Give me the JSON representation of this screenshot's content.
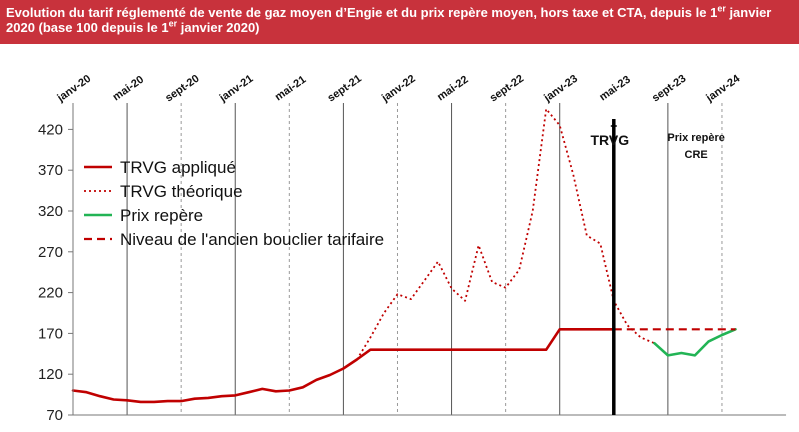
{
  "header": {
    "title_part1": "Evolution du tarif réglementé de vente de gaz moyen d’Engie et du prix repère moyen, hors taxe et CTA, depuis le 1",
    "title_sup1": "er",
    "title_part2": " janvier 2020 (base 100 depuis le 1",
    "title_sup2": "er",
    "title_part3": " janvier 2020)"
  },
  "chart_data": {
    "type": "line",
    "x_labels": [
      "janv-20",
      "mai-20",
      "sept-20",
      "janv-21",
      "mai-21",
      "sept-21",
      "janv-22",
      "mai-22",
      "sept-22",
      "janv-23",
      "mai-23",
      "sept-23",
      "janv-24"
    ],
    "x_start": "2020-01",
    "ylim": [
      70,
      445
    ],
    "yticks": [
      70,
      120,
      170,
      220,
      270,
      320,
      370,
      420
    ],
    "colors": {
      "trvg_applique": "#c00000",
      "trvg_theorique": "#c00000",
      "prix_repere": "#22b455",
      "bouclier": "#c00000"
    },
    "series": [
      {
        "name": "TRVG appliqué",
        "style": "solid",
        "points": [
          [
            0,
            100
          ],
          [
            1,
            98
          ],
          [
            2,
            93
          ],
          [
            3,
            89
          ],
          [
            4,
            88
          ],
          [
            5,
            86
          ],
          [
            6,
            86
          ],
          [
            7,
            87
          ],
          [
            8,
            87
          ],
          [
            9,
            90
          ],
          [
            10,
            91
          ],
          [
            11,
            93
          ],
          [
            12,
            94
          ],
          [
            13,
            98
          ],
          [
            14,
            102
          ],
          [
            15,
            99
          ],
          [
            16,
            100
          ],
          [
            17,
            104
          ],
          [
            18,
            113
          ],
          [
            19,
            119
          ],
          [
            20,
            127
          ],
          [
            21,
            138
          ],
          [
            22,
            150
          ],
          [
            23,
            150
          ],
          [
            24,
            150
          ],
          [
            25,
            150
          ],
          [
            26,
            150
          ],
          [
            27,
            150
          ],
          [
            28,
            150
          ],
          [
            29,
            150
          ],
          [
            30,
            150
          ],
          [
            31,
            150
          ],
          [
            32,
            150
          ],
          [
            33,
            150
          ],
          [
            34,
            150
          ],
          [
            35,
            150
          ],
          [
            36,
            175
          ],
          [
            37,
            175
          ],
          [
            38,
            175
          ],
          [
            39,
            175
          ],
          [
            40,
            175
          ]
        ]
      },
      {
        "name": "TRVG théorique",
        "style": "dotted",
        "points": [
          [
            21,
            138
          ],
          [
            22,
            165
          ],
          [
            23,
            195
          ],
          [
            24,
            218
          ],
          [
            25,
            212
          ],
          [
            26,
            235
          ],
          [
            27,
            258
          ],
          [
            28,
            225
          ],
          [
            29,
            210
          ],
          [
            30,
            278
          ],
          [
            31,
            233
          ],
          [
            32,
            226
          ],
          [
            33,
            248
          ],
          [
            34,
            320
          ],
          [
            35,
            445
          ],
          [
            36,
            425
          ],
          [
            37,
            365
          ],
          [
            38,
            290
          ],
          [
            39,
            280
          ],
          [
            40,
            210
          ],
          [
            41,
            180
          ],
          [
            42,
            165
          ],
          [
            43,
            158
          ]
        ]
      },
      {
        "name": "Prix repère",
        "style": "solid",
        "points": [
          [
            43,
            158
          ],
          [
            44,
            143
          ],
          [
            45,
            146
          ],
          [
            46,
            143
          ],
          [
            47,
            160
          ],
          [
            48,
            168
          ],
          [
            49,
            175
          ]
        ]
      },
      {
        "name": "Niveau de l'ancien bouclier tarifaire",
        "style": "dashed",
        "points": [
          [
            40,
            175
          ],
          [
            49,
            175
          ]
        ]
      }
    ],
    "annotations": [
      {
        "text": "TRVG",
        "at": "mai-23"
      },
      {
        "text": "Prix repère",
        "text2": "CRE",
        "at": "sept-23"
      }
    ]
  }
}
